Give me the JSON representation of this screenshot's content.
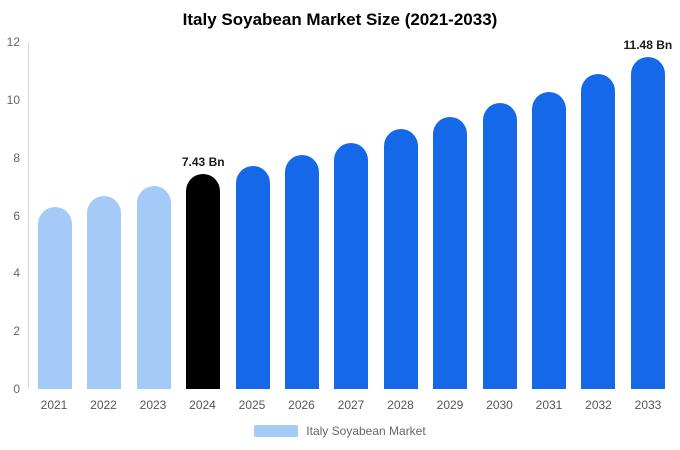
{
  "title": "Italy Soyabean Market Size (2021-2033)",
  "legend": {
    "label": "Italy Soyabean Market",
    "swatch_color": "#a4cbf7"
  },
  "colors": {
    "light_blue": "#a4cbf7",
    "highlight_black": "#000000",
    "blue": "#1569e8"
  },
  "chart_data": {
    "type": "bar",
    "title": "Italy Soyabean Market Size (2021-2033)",
    "xlabel": "",
    "ylabel": "",
    "ylim": [
      0,
      12
    ],
    "yticks": [
      0,
      2,
      4,
      6,
      8,
      10,
      12
    ],
    "grid": false,
    "legend_position": "bottom",
    "categories": [
      "2021",
      "2022",
      "2023",
      "2024",
      "2025",
      "2026",
      "2027",
      "2028",
      "2029",
      "2030",
      "2031",
      "2032",
      "2033"
    ],
    "values": [
      6.3,
      6.67,
      7.02,
      7.43,
      7.7,
      8.1,
      8.5,
      9.0,
      9.4,
      9.88,
      10.28,
      10.88,
      11.48
    ],
    "bar_colors": [
      "#a4cbf7",
      "#a4cbf7",
      "#a4cbf7",
      "#000000",
      "#1569e8",
      "#1569e8",
      "#1569e8",
      "#1569e8",
      "#1569e8",
      "#1569e8",
      "#1569e8",
      "#1569e8",
      "#1569e8"
    ],
    "annotations": [
      {
        "index": 3,
        "text": "7.43 Bn"
      },
      {
        "index": 12,
        "text": "11.48 Bn"
      }
    ]
  }
}
